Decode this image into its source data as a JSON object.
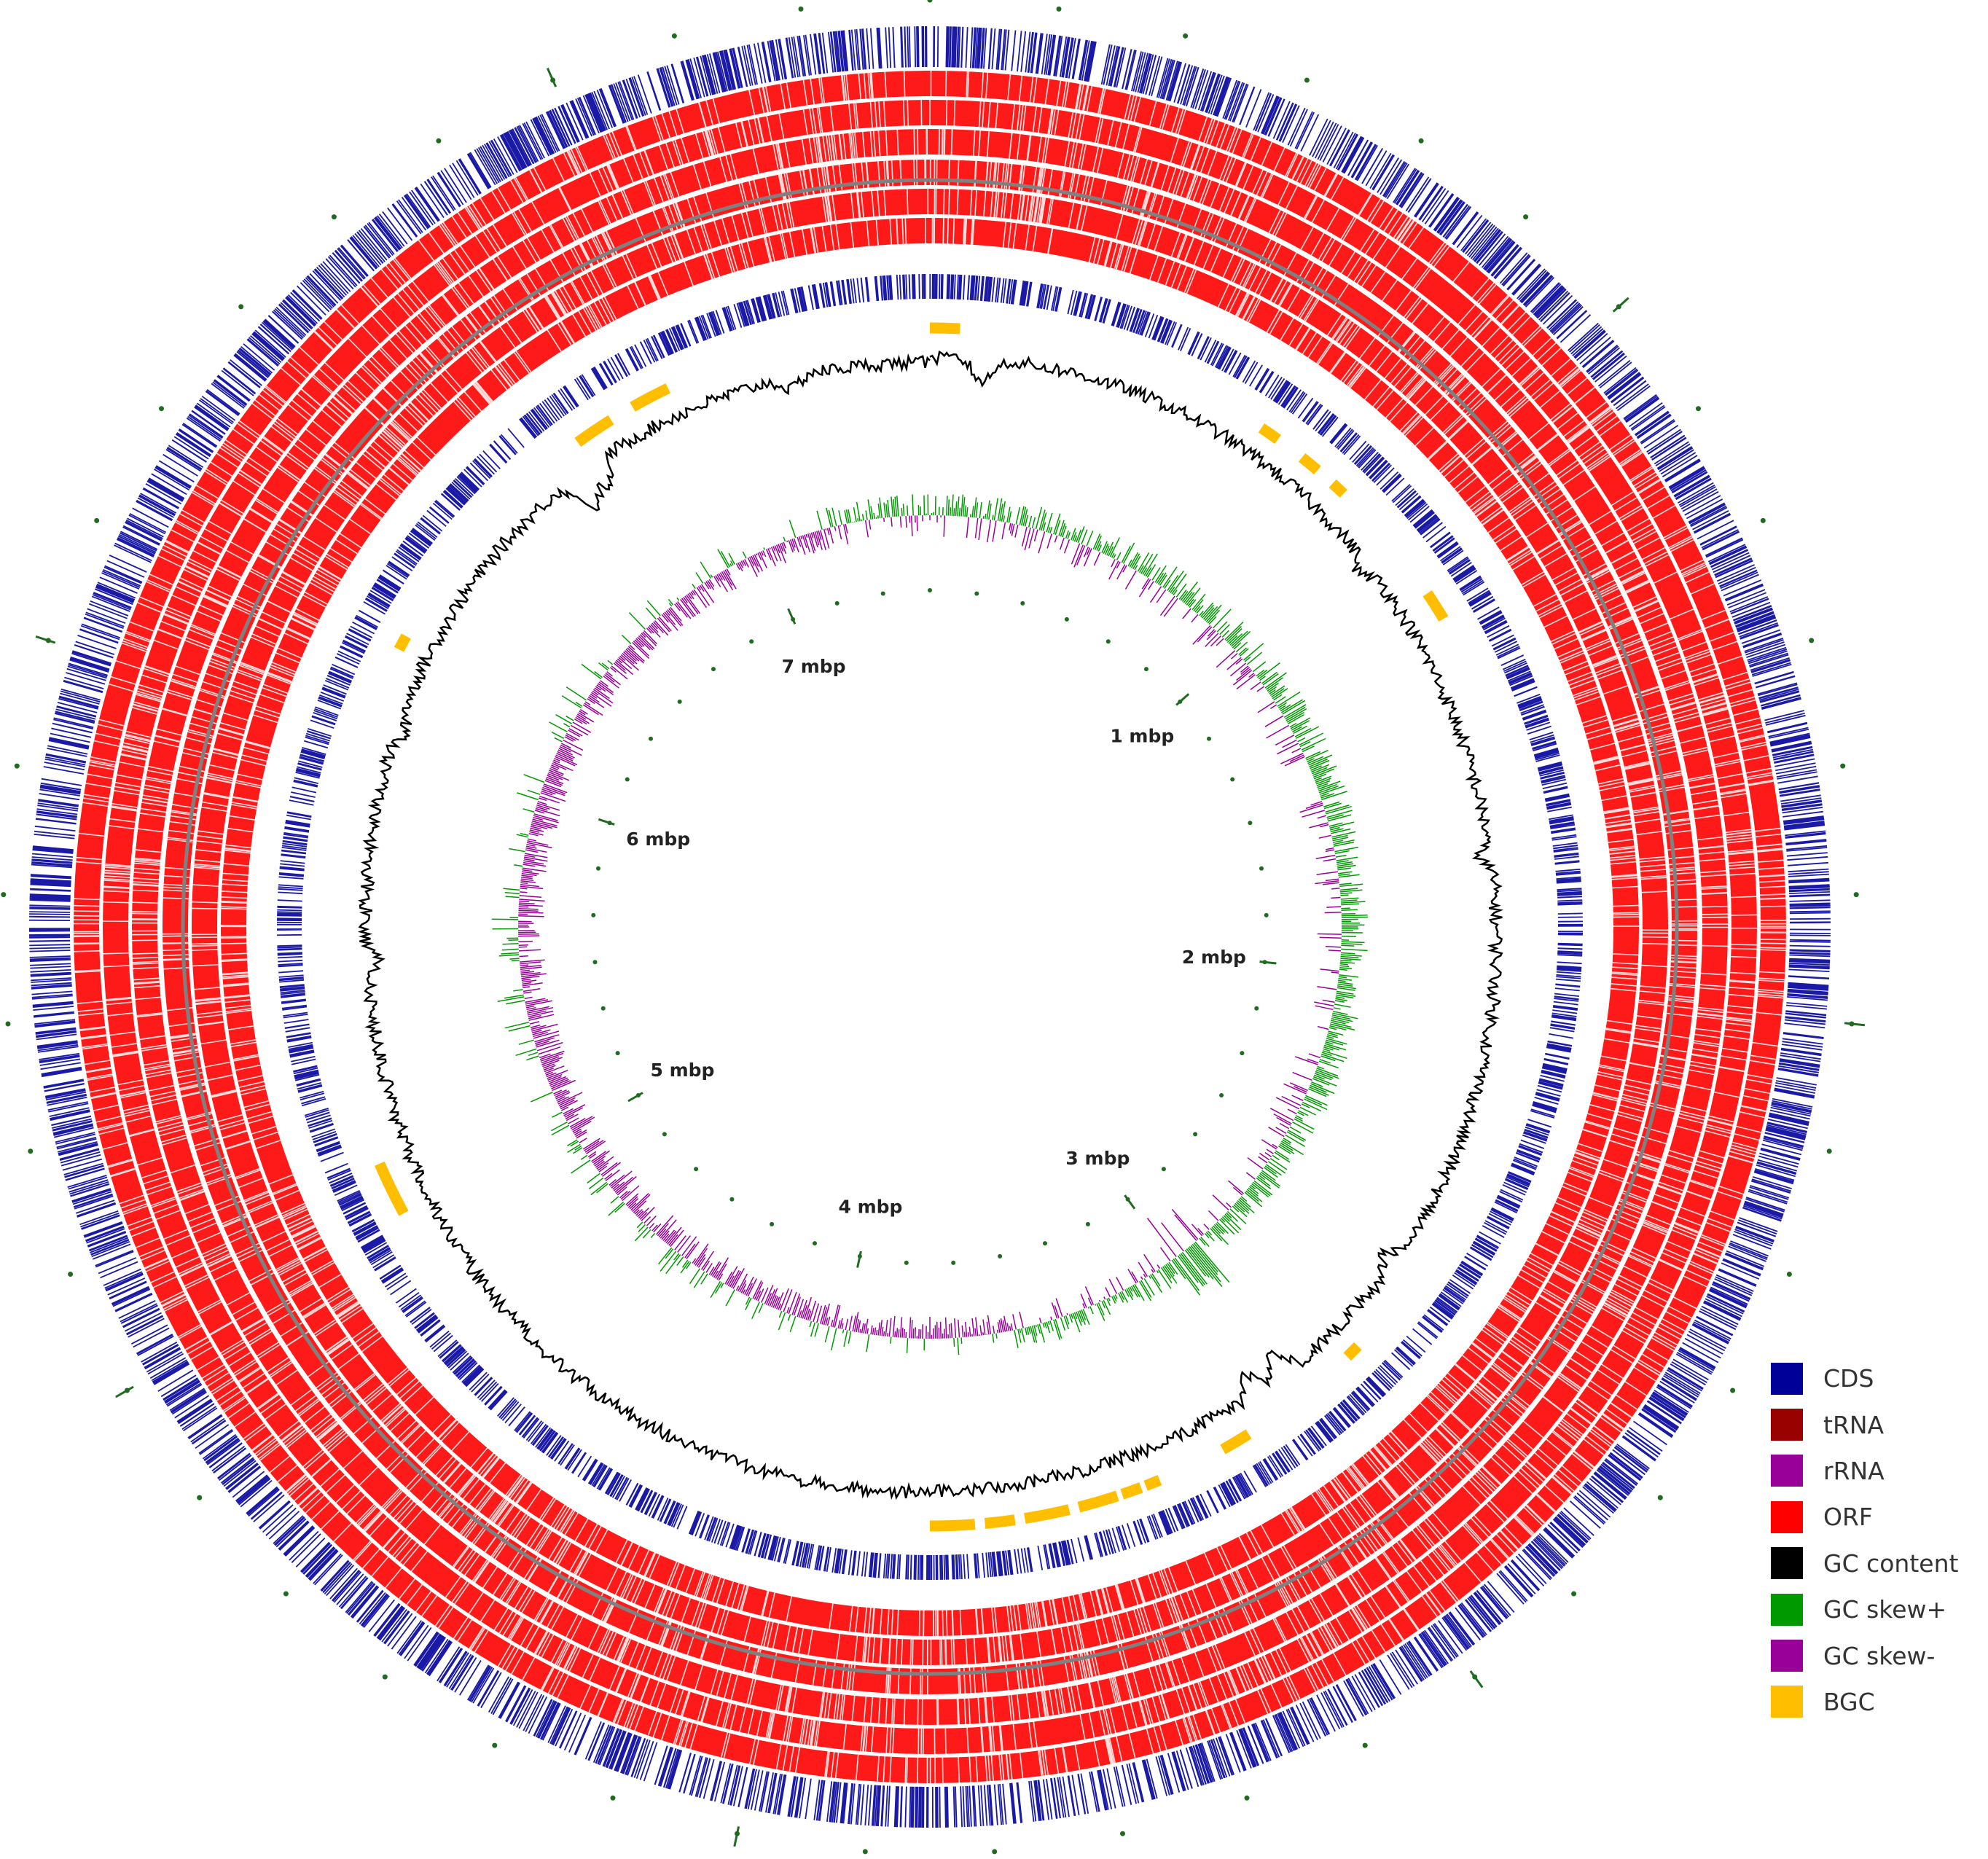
{
  "chart_data": {
    "type": "circular-genome-map",
    "genome_size_mbp": 7.5,
    "tick_labels": [
      "1 mbp",
      "2 mbp",
      "3 mbp",
      "4 mbp",
      "5 mbp",
      "6 mbp",
      "7 mbp"
    ],
    "tick_positions_mbp": [
      1,
      2,
      3,
      4,
      5,
      6,
      7
    ],
    "tracks": [
      "CDS",
      "ORF",
      "ORF",
      "ORF",
      "ORF",
      "ORF",
      "ORF",
      "CDS",
      "BGC",
      "GC content",
      "GC skew"
    ],
    "bgc_regions_mbp": [
      [
        0.0,
        0.06
      ],
      [
        0.7,
        0.74
      ],
      [
        0.8,
        0.84
      ],
      [
        0.88,
        0.91
      ],
      [
        1.17,
        1.23
      ],
      [
        2.8,
        2.83
      ],
      [
        3.08,
        3.14
      ],
      [
        3.28,
        3.31
      ],
      [
        3.32,
        3.36
      ],
      [
        3.37,
        3.45
      ],
      [
        3.47,
        3.56
      ],
      [
        3.58,
        3.64
      ],
      [
        3.66,
        3.75
      ],
      [
        5.03,
        5.14
      ],
      [
        6.2,
        6.23
      ],
      [
        6.75,
        6.83
      ],
      [
        6.88,
        6.96
      ]
    ]
  },
  "legend": [
    {
      "label": "CDS",
      "color": "#000099"
    },
    {
      "label": "tRNA",
      "color": "#990000"
    },
    {
      "label": "rRNA",
      "color": "#990099"
    },
    {
      "label": "ORF",
      "color": "#ff0000"
    },
    {
      "label": "GC content",
      "color": "#000000"
    },
    {
      "label": "GC skew+",
      "color": "#009900"
    },
    {
      "label": "GC skew-",
      "color": "#990099"
    },
    {
      "label": "BGC",
      "color": "#ffbf00"
    }
  ],
  "colors": {
    "cds": "#1a1aa6",
    "orf": "#ff1a1a",
    "backbone": "#808080",
    "bgc": "#ffbf00",
    "gc_content": "#000000",
    "gc_skew_pos": "#009900",
    "gc_skew_neg": "#990099",
    "tick": "#1f6b1f"
  }
}
